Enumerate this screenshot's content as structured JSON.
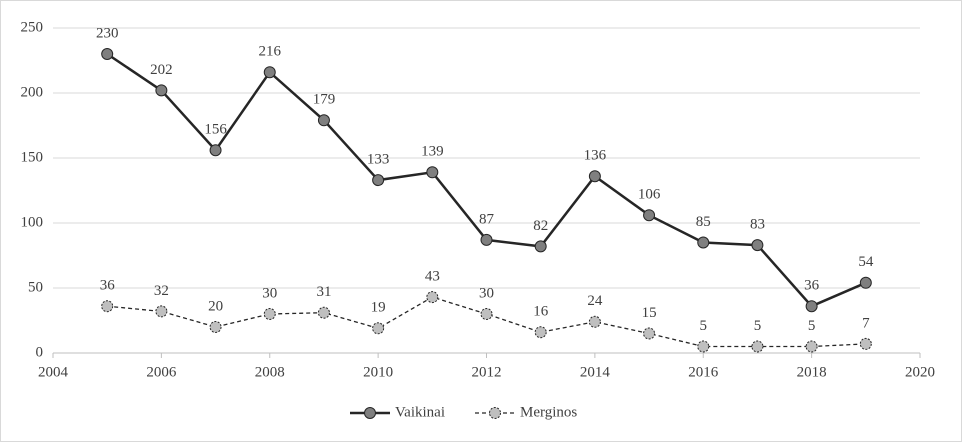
{
  "chart_data": {
    "type": "line",
    "x": [
      2005,
      2006,
      2007,
      2008,
      2009,
      2010,
      2011,
      2012,
      2013,
      2014,
      2015,
      2016,
      2017,
      2018,
      2019
    ],
    "series": [
      {
        "name": "Vaikinai",
        "color": "#262626",
        "marker_color": "#7f7f7f",
        "line_style": "solid",
        "values": [
          230,
          202,
          156,
          216,
          179,
          133,
          139,
          87,
          82,
          136,
          106,
          85,
          83,
          36,
          54
        ]
      },
      {
        "name": "Merginos",
        "color": "#262626",
        "marker_color": "#bfbfbf",
        "line_style": "dashed",
        "values": [
          36,
          32,
          20,
          30,
          31,
          19,
          43,
          30,
          16,
          24,
          15,
          5,
          5,
          5,
          7
        ]
      }
    ],
    "xlim": [
      2004,
      2020
    ],
    "xticks": [
      2004,
      2006,
      2008,
      2010,
      2012,
      2014,
      2016,
      2018,
      2020
    ],
    "ylim": [
      0,
      250
    ],
    "yticks": [
      0,
      50,
      100,
      150,
      200,
      250
    ],
    "grid": true,
    "legend": "bottom",
    "data_labels": true
  }
}
